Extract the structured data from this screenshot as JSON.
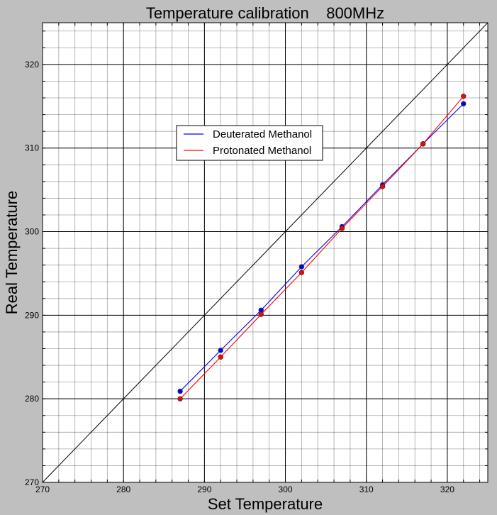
{
  "chart_data": {
    "type": "line",
    "title": "Temperature calibration    800MHz",
    "xlabel": "Set Temperature",
    "ylabel": "Real Temperature",
    "xlim": [
      270,
      325
    ],
    "ylim": [
      270,
      325
    ],
    "major_ticks_x": [
      270,
      280,
      290,
      300,
      310,
      320
    ],
    "major_ticks_y": [
      270,
      280,
      290,
      300,
      310,
      320
    ],
    "minor_tick_step": 2,
    "grid": true,
    "legend_position": "upper-center",
    "reference_line": {
      "x": [
        270,
        325
      ],
      "y": [
        270,
        325
      ],
      "color": "#000000"
    },
    "x": [
      287,
      292,
      297,
      302,
      307,
      312,
      317,
      322
    ],
    "series": [
      {
        "name": "Deuterated Methanol",
        "color": "#0000ff",
        "values": [
          280.9,
          285.8,
          290.6,
          295.8,
          300.6,
          305.6,
          310.5,
          315.3
        ]
      },
      {
        "name": "Protonated Methanol",
        "color": "#ff0000",
        "values": [
          280.0,
          285.0,
          290.1,
          295.1,
          300.4,
          305.4,
          310.5,
          316.2
        ]
      }
    ]
  }
}
